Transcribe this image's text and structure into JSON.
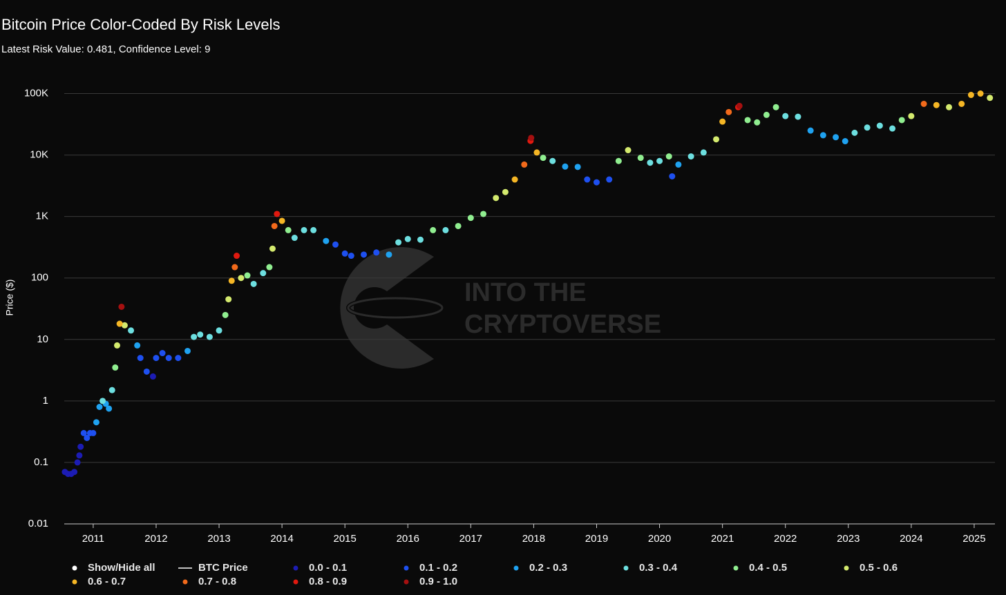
{
  "chart_data": {
    "type": "scatter",
    "title": "Bitcoin Price Color-Coded By Risk Levels",
    "subtitle": "Latest Risk Value: 0.481, Confidence Level: 9",
    "y_label": "Price ($)",
    "watermark": [
      "INTO THE",
      "CRYPTOVERSE"
    ],
    "legend_toggle": "Show/Hide all",
    "log_y": true,
    "grid": true,
    "xlim": [
      2010.54,
      2025.33
    ],
    "xticks": [
      2011,
      2012,
      2013,
      2014,
      2015,
      2016,
      2017,
      2018,
      2019,
      2020,
      2021,
      2022,
      2023,
      2024,
      2025
    ],
    "ylim": [
      0.01,
      170000
    ],
    "yticks": [
      0.01,
      0.1,
      1,
      10,
      100,
      {
        "value": 1000,
        "label": "1K"
      },
      {
        "value": 10000,
        "label": "10K"
      },
      {
        "value": 100000,
        "label": "100K"
      }
    ],
    "series": [
      {
        "name": "BTC Price",
        "style": "line",
        "color": "#ffffff",
        "x": [],
        "values": []
      },
      {
        "name": "0.0 - 0.1",
        "style": "scatter",
        "color": "#1c1cb4",
        "x": [
          2010.55,
          2010.6,
          2010.65,
          2010.7,
          2010.75,
          2010.78,
          2010.8,
          2011.95
        ],
        "values": [
          0.07,
          0.065,
          0.065,
          0.07,
          0.1,
          0.13,
          0.18,
          2.5
        ]
      },
      {
        "name": "0.1 - 0.2",
        "style": "scatter",
        "color": "#1e50f0",
        "x": [
          2010.85,
          2010.9,
          2010.95,
          2011.0,
          2011.75,
          2011.85,
          2012.0,
          2012.1,
          2012.2,
          2012.35,
          2014.85,
          2015.0,
          2015.1,
          2015.3,
          2015.5,
          2018.85,
          2019.0,
          2019.2,
          2020.2
        ],
        "values": [
          0.3,
          0.25,
          0.3,
          0.3,
          5,
          3,
          5,
          6,
          5,
          5,
          350,
          250,
          230,
          240,
          260,
          4000,
          3600,
          4000,
          4500
        ]
      },
      {
        "name": "0.2 - 0.3",
        "style": "scatter",
        "color": "#1fa2f0",
        "x": [
          2011.05,
          2011.1,
          2011.2,
          2011.25,
          2011.7,
          2012.5,
          2014.7,
          2015.7,
          2018.5,
          2018.7,
          2020.3,
          2022.4,
          2022.6,
          2022.8,
          2022.95
        ],
        "values": [
          0.45,
          0.8,
          0.9,
          0.75,
          8,
          6.5,
          400,
          240,
          6500,
          6400,
          7000,
          25000,
          21000,
          19500,
          16800
        ]
      },
      {
        "name": "0.3 - 0.4",
        "style": "scatter",
        "color": "#6ddfe0",
        "x": [
          2011.15,
          2011.3,
          2011.6,
          2012.6,
          2012.7,
          2012.85,
          2013.0,
          2013.55,
          2013.7,
          2014.2,
          2014.35,
          2014.5,
          2015.85,
          2016.0,
          2016.2,
          2016.6,
          2018.3,
          2019.85,
          2020.0,
          2020.5,
          2020.7,
          2022.0,
          2022.2,
          2023.1,
          2023.3,
          2023.5,
          2023.7
        ],
        "values": [
          1.0,
          1.5,
          14,
          11,
          12,
          11,
          14,
          80,
          120,
          450,
          600,
          600,
          380,
          430,
          420,
          600,
          8000,
          7500,
          8000,
          9500,
          11000,
          43000,
          42000,
          23000,
          28000,
          30000,
          27000
        ]
      },
      {
        "name": "0.4 - 0.5",
        "style": "scatter",
        "color": "#90ee90",
        "x": [
          2011.35,
          2013.1,
          2013.45,
          2013.8,
          2014.1,
          2016.4,
          2016.8,
          2017.0,
          2017.2,
          2018.15,
          2019.35,
          2019.7,
          2020.15,
          2021.4,
          2021.55,
          2021.7,
          2021.85,
          2023.85
        ],
        "values": [
          3.5,
          25,
          110,
          150,
          600,
          600,
          700,
          950,
          1100,
          9000,
          8000,
          9000,
          9500,
          37000,
          34000,
          45000,
          60000,
          37000
        ]
      },
      {
        "name": "0.5 - 0.6",
        "style": "scatter",
        "color": "#d4ea6e",
        "x": [
          2011.38,
          2011.5,
          2013.15,
          2013.35,
          2013.85,
          2017.4,
          2017.55,
          2019.5,
          2020.9,
          2024.0,
          2024.6,
          2025.25
        ],
        "values": [
          8,
          17,
          45,
          100,
          300,
          2000,
          2500,
          12000,
          18000,
          43000,
          60000,
          85000
        ]
      },
      {
        "name": "0.6 - 0.7",
        "style": "scatter",
        "color": "#f5b625",
        "x": [
          2011.42,
          2013.2,
          2014.0,
          2017.7,
          2018.05,
          2021.0,
          2024.4,
          2024.8,
          2024.95,
          2025.1
        ],
        "values": [
          18,
          90,
          850,
          4000,
          11000,
          35000,
          65000,
          68000,
          95000,
          100000
        ]
      },
      {
        "name": "0.7 - 0.8",
        "style": "scatter",
        "color": "#f26a1b",
        "x": [
          2013.25,
          2013.88,
          2017.85,
          2021.1,
          2024.2
        ],
        "values": [
          150,
          700,
          7000,
          50000,
          68000
        ]
      },
      {
        "name": "0.8 - 0.9",
        "style": "scatter",
        "color": "#e0190f",
        "x": [
          2013.28,
          2013.92,
          2017.95,
          2021.25
        ],
        "values": [
          230,
          1100,
          17000,
          60000
        ]
      },
      {
        "name": "0.9 - 1.0",
        "style": "scatter",
        "color": "#a51010",
        "x": [
          2011.45,
          2017.96,
          2021.27
        ],
        "values": [
          34,
          19000,
          63000
        ]
      }
    ]
  }
}
